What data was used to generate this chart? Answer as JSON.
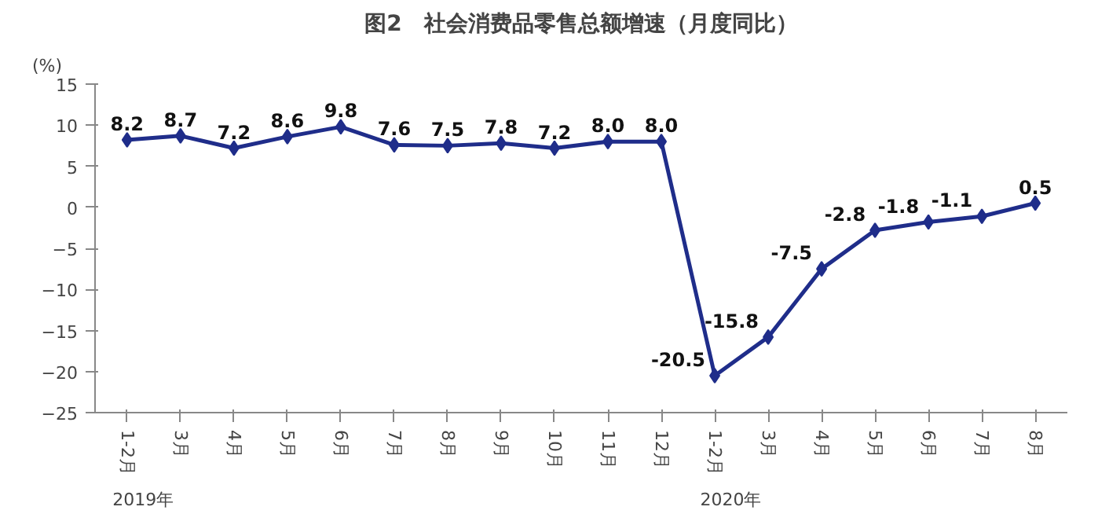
{
  "chart_data": {
    "type": "line",
    "title": "图2　社会消费品零售总额增速（月度同比）",
    "ylabel": "(%)",
    "categories": [
      "1-2月",
      "3月",
      "4月",
      "5月",
      "6月",
      "7月",
      "8月",
      "9月",
      "10月",
      "11月",
      "12月",
      "1-2月",
      "3月",
      "4月",
      "5月",
      "6月",
      "7月",
      "8月"
    ],
    "series": [
      {
        "color": "#1f2d8a",
        "values": [
          8.2,
          8.7,
          7.2,
          8.6,
          9.8,
          7.6,
          7.5,
          7.8,
          7.2,
          8.0,
          8.0,
          -20.5,
          -15.8,
          -7.5,
          -2.8,
          -1.8,
          -1.1,
          0.5
        ],
        "value_labels": [
          "8.2",
          "8.7",
          "7.2",
          "8.6",
          "9.8",
          "7.6",
          "7.5",
          "7.8",
          "7.2",
          "8.0",
          "8.0",
          "-20.5",
          "-15.8",
          "-7.5",
          "-2.8",
          "-1.8",
          "-1.1",
          "0.5"
        ]
      }
    ],
    "ylim": [
      -25,
      15
    ],
    "yticks": [
      -25,
      -20,
      -15,
      -10,
      -5,
      0,
      5,
      10,
      15
    ],
    "marker": "diamond",
    "grid": false,
    "annotations": [
      "2019年",
      "2020年"
    ]
  }
}
